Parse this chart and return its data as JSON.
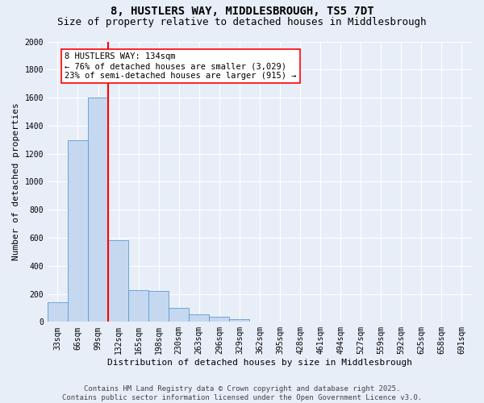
{
  "title1": "8, HUSTLERS WAY, MIDDLESBROUGH, TS5 7DT",
  "title2": "Size of property relative to detached houses in Middlesbrough",
  "xlabel": "Distribution of detached houses by size in Middlesbrough",
  "ylabel": "Number of detached properties",
  "categories": [
    "33sqm",
    "66sqm",
    "99sqm",
    "132sqm",
    "165sqm",
    "198sqm",
    "230sqm",
    "263sqm",
    "296sqm",
    "329sqm",
    "362sqm",
    "395sqm",
    "428sqm",
    "461sqm",
    "494sqm",
    "527sqm",
    "559sqm",
    "592sqm",
    "625sqm",
    "658sqm",
    "691sqm"
  ],
  "values": [
    140,
    1295,
    1600,
    585,
    225,
    220,
    100,
    55,
    35,
    20,
    0,
    0,
    0,
    0,
    0,
    0,
    0,
    0,
    0,
    0,
    0
  ],
  "bar_color": "#c5d8f0",
  "bar_edge_color": "#5b9bd5",
  "vline_color": "red",
  "annotation_text": "8 HUSTLERS WAY: 134sqm\n← 76% of detached houses are smaller (3,029)\n23% of semi-detached houses are larger (915) →",
  "annotation_box_color": "white",
  "annotation_box_edge": "red",
  "ylim": [
    0,
    2000
  ],
  "yticks": [
    0,
    200,
    400,
    600,
    800,
    1000,
    1200,
    1400,
    1600,
    1800,
    2000
  ],
  "bg_color": "#e8eef8",
  "footer": "Contains HM Land Registry data © Crown copyright and database right 2025.\nContains public sector information licensed under the Open Government Licence v3.0.",
  "title1_fontsize": 10,
  "title2_fontsize": 9,
  "xlabel_fontsize": 8,
  "ylabel_fontsize": 8,
  "tick_fontsize": 7,
  "annotation_fontsize": 7.5,
  "footer_fontsize": 6.5
}
